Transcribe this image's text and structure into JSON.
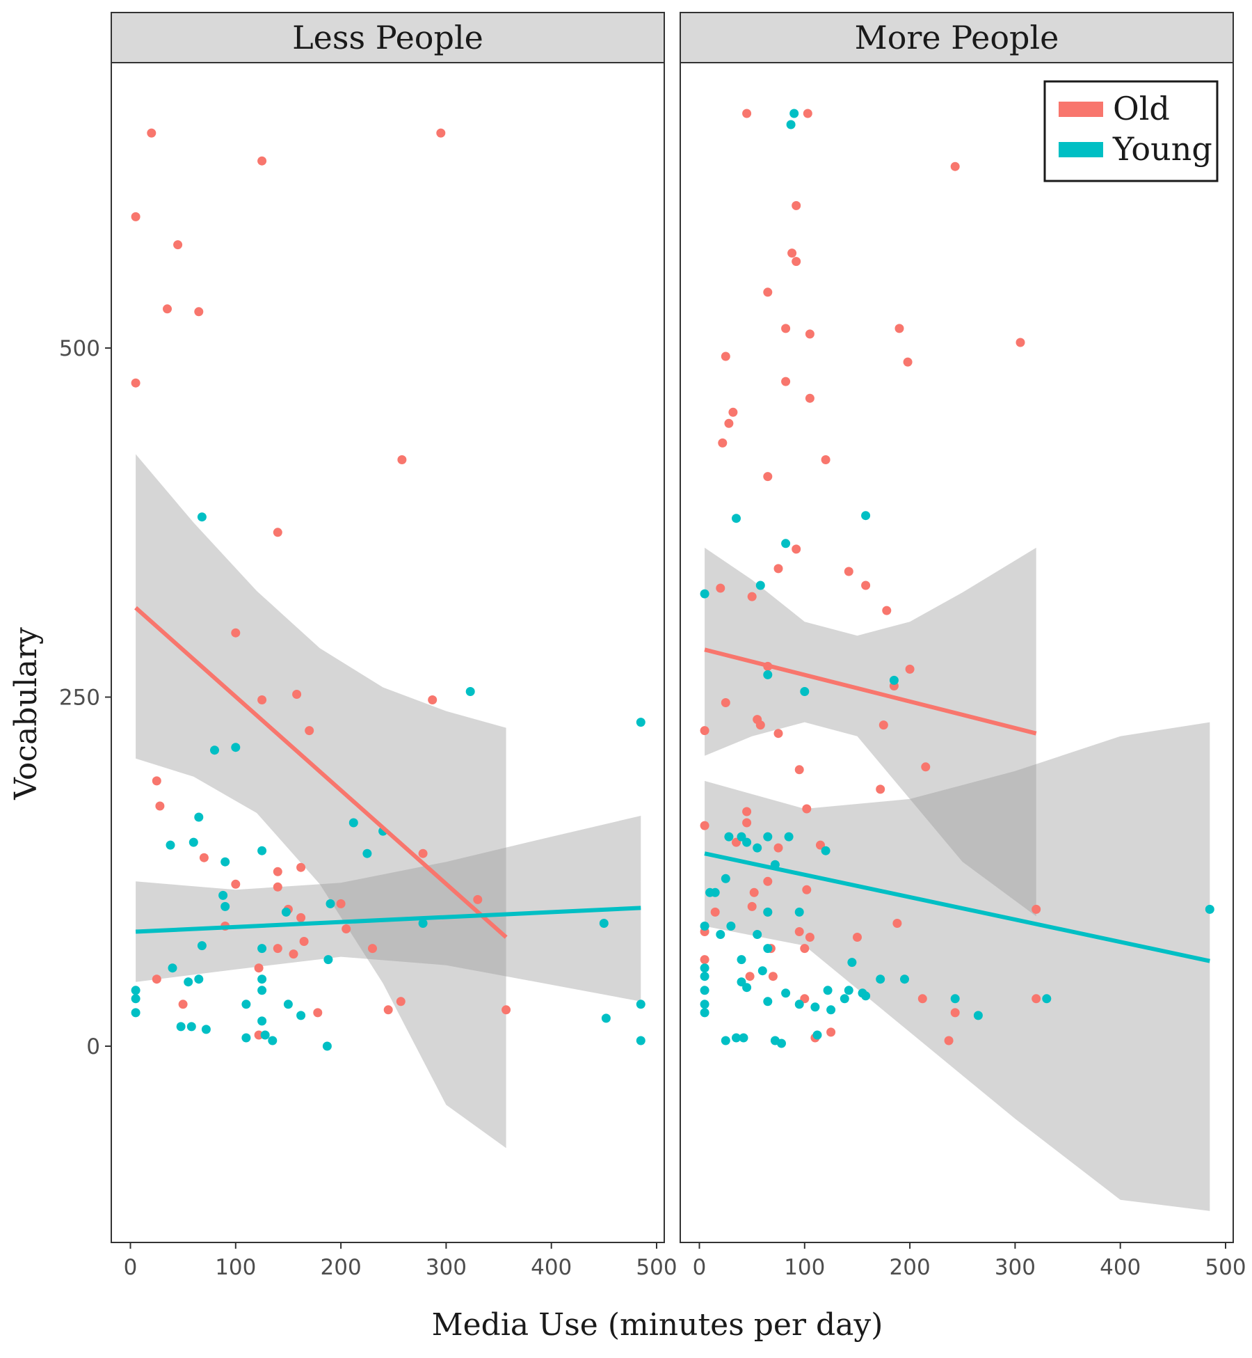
{
  "chart_data": {
    "type": "scatter",
    "title": "",
    "xlabel": "Media Use (minutes per day)",
    "ylabel": "Vocabulary",
    "xlim": [
      -12,
      515
    ],
    "ylim": [
      -140,
      720
    ],
    "xticks": [
      0,
      100,
      200,
      300,
      400,
      500
    ],
    "yticks": [
      0,
      250,
      500
    ],
    "legend": {
      "placement": "top-right",
      "entries": [
        {
          "label": "Old",
          "color": "#F8766D"
        },
        {
          "label": "Young",
          "color": "#00BFC4"
        }
      ]
    },
    "band_color": "#999999",
    "panels": [
      {
        "strip": "Less People",
        "series": [
          {
            "name": "Old",
            "color": "#F8766D",
            "points": [
              [
                5,
                594
              ],
              [
                20,
                654
              ],
              [
                45,
                574
              ],
              [
                35,
                528
              ],
              [
                65,
                526
              ],
              [
                125,
                634
              ],
              [
                295,
                654
              ],
              [
                5,
                475
              ],
              [
                258,
                420
              ],
              [
                140,
                368
              ],
              [
                100,
                296
              ],
              [
                125,
                248
              ],
              [
                158,
                252
              ],
              [
                170,
                226
              ],
              [
                25,
                190
              ],
              [
                28,
                172
              ],
              [
                70,
                135
              ],
              [
                140,
                125
              ],
              [
                162,
                128
              ],
              [
                100,
                116
              ],
              [
                140,
                114
              ],
              [
                200,
                102
              ],
              [
                150,
                98
              ],
              [
                162,
                92
              ],
              [
                205,
                84
              ],
              [
                165,
                75
              ],
              [
                140,
                70
              ],
              [
                155,
                66
              ],
              [
                230,
                70
              ],
              [
                122,
                56
              ],
              [
                25,
                48
              ],
              [
                50,
                30
              ],
              [
                178,
                24
              ],
              [
                122,
                8
              ],
              [
                287,
                248
              ],
              [
                330,
                105
              ],
              [
                245,
                26
              ],
              [
                257,
                32
              ],
              [
                357,
                26
              ],
              [
                278,
                138
              ],
              [
                90,
                86
              ]
            ]
          },
          {
            "name": "Young",
            "color": "#00BFC4",
            "points": [
              [
                68,
                379
              ],
              [
                80,
                212
              ],
              [
                100,
                214
              ],
              [
                65,
                164
              ],
              [
                38,
                144
              ],
              [
                60,
                146
              ],
              [
                125,
                140
              ],
              [
                90,
                132
              ],
              [
                212,
                160
              ],
              [
                225,
                138
              ],
              [
                240,
                154
              ],
              [
                88,
                108
              ],
              [
                90,
                100
              ],
              [
                190,
                102
              ],
              [
                148,
                96
              ],
              [
                278,
                88
              ],
              [
                40,
                56
              ],
              [
                68,
                72
              ],
              [
                125,
                70
              ],
              [
                125,
                48
              ],
              [
                125,
                40
              ],
              [
                150,
                30
              ],
              [
                110,
                30
              ],
              [
                55,
                46
              ],
              [
                65,
                48
              ],
              [
                5,
                40
              ],
              [
                5,
                34
              ],
              [
                5,
                24
              ],
              [
                48,
                14
              ],
              [
                58,
                14
              ],
              [
                72,
                12
              ],
              [
                110,
                6
              ],
              [
                128,
                8
              ],
              [
                135,
                4
              ],
              [
                188,
                62
              ],
              [
                162,
                22
              ],
              [
                187,
                0
              ],
              [
                125,
                18
              ],
              [
                323,
                254
              ],
              [
                450,
                88
              ],
              [
                485,
                232
              ],
              [
                485,
                30
              ],
              [
                452,
                20
              ],
              [
                485,
                4
              ]
            ]
          }
        ],
        "fits": [
          {
            "name": "Old",
            "color": "#F8766D",
            "x": [
              5,
              357
            ],
            "y": [
              314,
              78
            ],
            "band_x": [
              5,
              60,
              120,
              180,
              240,
              300,
              357
            ],
            "band_upper": [
              424,
              375,
              326,
              285,
              257,
              240,
              228
            ],
            "band_lower": [
              206,
              193,
              167,
              116,
              45,
              -42,
              -73
            ]
          },
          {
            "name": "Young",
            "color": "#00BFC4",
            "x": [
              5,
              485
            ],
            "y": [
              82,
              99
            ],
            "band_x": [
              5,
              100,
              200,
              300,
              400,
              485
            ],
            "band_upper": [
              118,
              112,
              117,
              132,
              150,
              165
            ],
            "band_lower": [
              46,
              55,
              64,
              58,
              44,
              32
            ]
          }
        ]
      },
      {
        "strip": "More People",
        "series": [
          {
            "name": "Old",
            "color": "#F8766D",
            "points": [
              [
                45,
                668
              ],
              [
                103,
                668
              ],
              [
                243,
                630
              ],
              [
                92,
                602
              ],
              [
                88,
                568
              ],
              [
                92,
                562
              ],
              [
                65,
                540
              ],
              [
                82,
                514
              ],
              [
                105,
                510
              ],
              [
                190,
                514
              ],
              [
                305,
                504
              ],
              [
                25,
                494
              ],
              [
                198,
                490
              ],
              [
                82,
                476
              ],
              [
                105,
                464
              ],
              [
                32,
                454
              ],
              [
                28,
                446
              ],
              [
                22,
                432
              ],
              [
                120,
                420
              ],
              [
                65,
                408
              ],
              [
                92,
                356
              ],
              [
                75,
                342
              ],
              [
                142,
                340
              ],
              [
                158,
                330
              ],
              [
                50,
                322
              ],
              [
                20,
                328
              ],
              [
                178,
                312
              ],
              [
                65,
                272
              ],
              [
                200,
                270
              ],
              [
                185,
                258
              ],
              [
                5,
                226
              ],
              [
                55,
                234
              ],
              [
                58,
                230
              ],
              [
                75,
                224
              ],
              [
                175,
                230
              ],
              [
                25,
                246
              ],
              [
                215,
                200
              ],
              [
                95,
                198
              ],
              [
                172,
                184
              ],
              [
                102,
                170
              ],
              [
                45,
                168
              ],
              [
                5,
                158
              ],
              [
                45,
                160
              ],
              [
                35,
                146
              ],
              [
                115,
                144
              ],
              [
                75,
                142
              ],
              [
                65,
                118
              ],
              [
                52,
                110
              ],
              [
                102,
                112
              ],
              [
                15,
                96
              ],
              [
                50,
                100
              ],
              [
                65,
                96
              ],
              [
                95,
                82
              ],
              [
                105,
                78
              ],
              [
                150,
                78
              ],
              [
                100,
                70
              ],
              [
                5,
                62
              ],
              [
                68,
                70
              ],
              [
                48,
                50
              ],
              [
                70,
                50
              ],
              [
                100,
                34
              ],
              [
                212,
                34
              ],
              [
                243,
                24
              ],
              [
                320,
                34
              ],
              [
                237,
                4
              ],
              [
                110,
                6
              ],
              [
                125,
                10
              ],
              [
                320,
                98
              ],
              [
                188,
                88
              ],
              [
                5,
                82
              ]
            ]
          },
          {
            "name": "Young",
            "color": "#00BFC4",
            "points": [
              [
                90,
                668
              ],
              [
                87,
                660
              ],
              [
                35,
                378
              ],
              [
                158,
                380
              ],
              [
                82,
                360
              ],
              [
                58,
                330
              ],
              [
                5,
                324
              ],
              [
                100,
                254
              ],
              [
                65,
                266
              ],
              [
                185,
                262
              ],
              [
                10,
                110
              ],
              [
                15,
                110
              ],
              [
                28,
                150
              ],
              [
                40,
                150
              ],
              [
                25,
                120
              ],
              [
                55,
                142
              ],
              [
                45,
                146
              ],
              [
                65,
                150
              ],
              [
                85,
                150
              ],
              [
                72,
                130
              ],
              [
                95,
                96
              ],
              [
                120,
                140
              ],
              [
                65,
                96
              ],
              [
                30,
                86
              ],
              [
                20,
                80
              ],
              [
                5,
                86
              ],
              [
                55,
                80
              ],
              [
                65,
                70
              ],
              [
                40,
                62
              ],
              [
                40,
                46
              ],
              [
                60,
                54
              ],
              [
                5,
                56
              ],
              [
                5,
                50
              ],
              [
                5,
                40
              ],
              [
                5,
                30
              ],
              [
                5,
                24
              ],
              [
                45,
                42
              ],
              [
                82,
                38
              ],
              [
                65,
                32
              ],
              [
                95,
                30
              ],
              [
                110,
                28
              ],
              [
                122,
                40
              ],
              [
                138,
                34
              ],
              [
                142,
                40
              ],
              [
                125,
                26
              ],
              [
                155,
                38
              ],
              [
                158,
                36
              ],
              [
                172,
                48
              ],
              [
                195,
                48
              ],
              [
                112,
                8
              ],
              [
                25,
                4
              ],
              [
                35,
                6
              ],
              [
                42,
                6
              ],
              [
                72,
                4
              ],
              [
                78,
                2
              ],
              [
                145,
                60
              ],
              [
                243,
                34
              ],
              [
                265,
                22
              ],
              [
                330,
                34
              ],
              [
                485,
                98
              ]
            ]
          }
        ],
        "fits": [
          {
            "name": "Old",
            "color": "#F8766D",
            "x": [
              5,
              320
            ],
            "y": [
              284,
              224
            ],
            "band_x": [
              5,
              50,
              100,
              150,
              200,
              250,
              320
            ],
            "band_upper": [
              357,
              334,
              304,
              294,
              304,
              325,
              357
            ],
            "band_lower": [
              208,
              222,
              232,
              222,
              177,
              132,
              93
            ]
          },
          {
            "name": "Young",
            "color": "#00BFC4",
            "x": [
              5,
              485
            ],
            "y": [
              138,
              61
            ],
            "band_x": [
              5,
              100,
              200,
              300,
              400,
              485
            ],
            "band_upper": [
              190,
              170,
              177,
              197,
              222,
              232
            ],
            "band_lower": [
              86,
              72,
              10,
              -52,
              -110,
              -118
            ]
          }
        ]
      }
    ]
  }
}
